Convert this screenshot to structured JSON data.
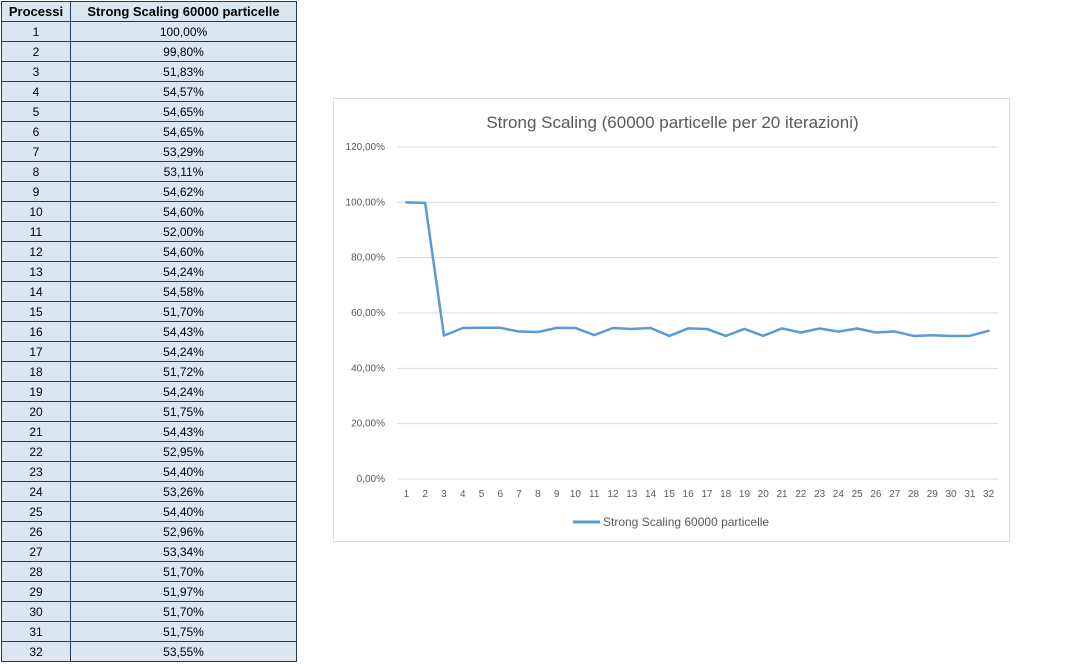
{
  "table": {
    "headers": [
      "Processi",
      "Strong Scaling 60000 particelle"
    ],
    "rows": [
      [
        "1",
        "100,00%"
      ],
      [
        "2",
        "99,80%"
      ],
      [
        "3",
        "51,83%"
      ],
      [
        "4",
        "54,57%"
      ],
      [
        "5",
        "54,65%"
      ],
      [
        "6",
        "54,65%"
      ],
      [
        "7",
        "53,29%"
      ],
      [
        "8",
        "53,11%"
      ],
      [
        "9",
        "54,62%"
      ],
      [
        "10",
        "54,60%"
      ],
      [
        "11",
        "52,00%"
      ],
      [
        "12",
        "54,60%"
      ],
      [
        "13",
        "54,24%"
      ],
      [
        "14",
        "54,58%"
      ],
      [
        "15",
        "51,70%"
      ],
      [
        "16",
        "54,43%"
      ],
      [
        "17",
        "54,24%"
      ],
      [
        "18",
        "51,72%"
      ],
      [
        "19",
        "54,24%"
      ],
      [
        "20",
        "51,75%"
      ],
      [
        "21",
        "54,43%"
      ],
      [
        "22",
        "52,95%"
      ],
      [
        "23",
        "54,40%"
      ],
      [
        "24",
        "53,26%"
      ],
      [
        "25",
        "54,40%"
      ],
      [
        "26",
        "52,96%"
      ],
      [
        "27",
        "53,34%"
      ],
      [
        "28",
        "51,70%"
      ],
      [
        "29",
        "51,97%"
      ],
      [
        "30",
        "51,70%"
      ],
      [
        "31",
        "51,75%"
      ],
      [
        "32",
        "53,55%"
      ]
    ]
  },
  "chart_data": {
    "type": "line",
    "title": "Strong Scaling (60000 particelle per 20 iterazioni)",
    "xlabel": "",
    "ylabel": "",
    "x": [
      1,
      2,
      3,
      4,
      5,
      6,
      7,
      8,
      9,
      10,
      11,
      12,
      13,
      14,
      15,
      16,
      17,
      18,
      19,
      20,
      21,
      22,
      23,
      24,
      25,
      26,
      27,
      28,
      29,
      30,
      31,
      32
    ],
    "ylim": [
      0,
      120
    ],
    "yticks": [
      "0,00%",
      "20,00%",
      "40,00%",
      "60,00%",
      "80,00%",
      "100,00%",
      "120,00%"
    ],
    "grid": true,
    "legend_position": "bottom",
    "series": [
      {
        "name": "Strong Scaling 60000 particelle",
        "color": "#5b9bd5",
        "values": [
          100.0,
          99.8,
          51.83,
          54.57,
          54.65,
          54.65,
          53.29,
          53.11,
          54.62,
          54.6,
          52.0,
          54.6,
          54.24,
          54.58,
          51.7,
          54.43,
          54.24,
          51.72,
          54.24,
          51.75,
          54.43,
          52.95,
          54.4,
          53.26,
          54.4,
          52.96,
          53.34,
          51.7,
          51.97,
          51.7,
          51.75,
          53.55
        ]
      }
    ]
  }
}
